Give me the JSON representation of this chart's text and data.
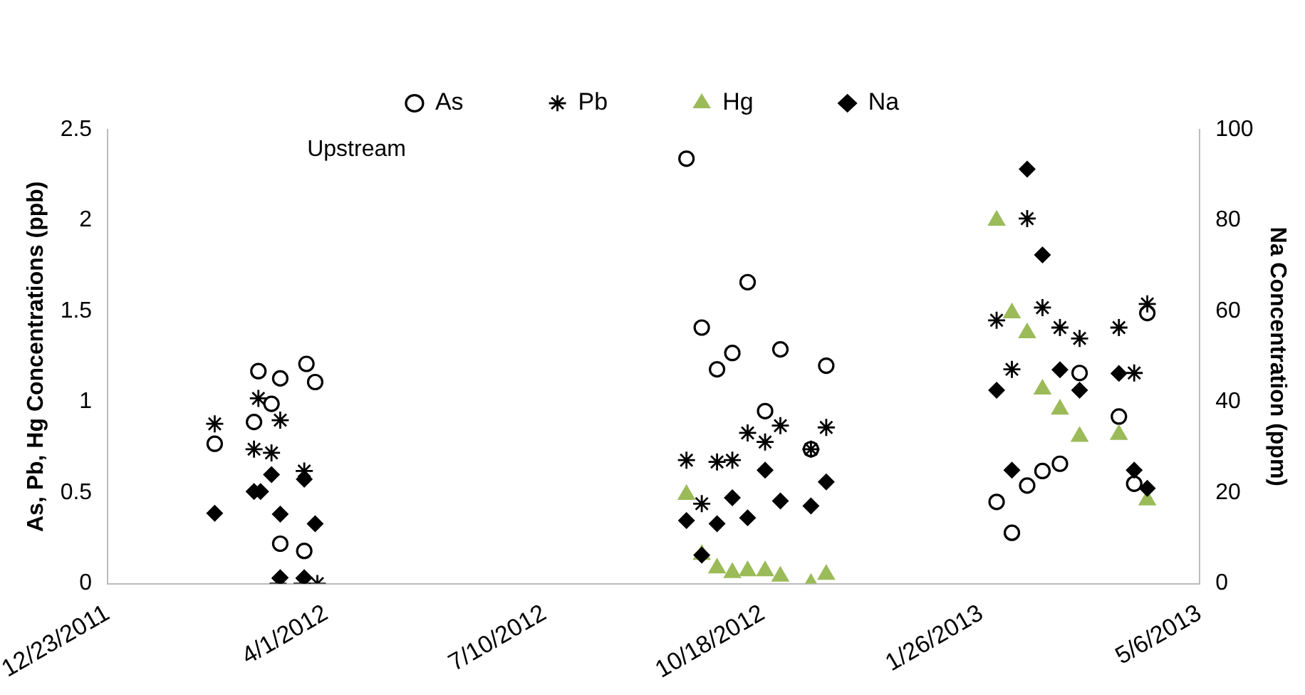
{
  "chart_data": {
    "type": "scatter",
    "ylabel": "As, Pb, Hg Concentrations (ppb)",
    "y2label": "Na Concentration (ppm)",
    "annotations": [
      "Upstream"
    ],
    "xlim": [
      "2011-12-23",
      "2013-05-06"
    ],
    "xticks": [
      {
        "value": "2011-12-23",
        "label": "12/23/2011"
      },
      {
        "value": "2012-04-01",
        "label": "4/1/2012"
      },
      {
        "value": "2012-07-10",
        "label": "7/10/2012"
      },
      {
        "value": "2012-10-18",
        "label": "10/18/2012"
      },
      {
        "value": "2013-01-26",
        "label": "1/26/2013"
      },
      {
        "value": "2013-05-06",
        "label": "5/6/2013"
      }
    ],
    "ylim": [
      0,
      2.5
    ],
    "yticks": [
      0,
      0.5,
      1,
      1.5,
      2,
      2.5
    ],
    "y2lim": [
      0,
      100
    ],
    "y2ticks": [
      0,
      20,
      40,
      60,
      80,
      100
    ],
    "grid": false,
    "legend": "top",
    "series": [
      {
        "name": "As",
        "color": "#000000",
        "marker": "circle",
        "x": [
          "2012-02-10",
          "2012-02-28",
          "2012-03-01",
          "2012-03-07",
          "2012-03-11",
          "2012-03-11",
          "2012-03-22",
          "2012-03-23",
          "2012-03-27",
          "2012-09-13",
          "2012-09-20",
          "2012-09-27",
          "2012-10-04",
          "2012-10-11",
          "2012-10-19",
          "2012-10-26",
          "2012-11-09",
          "2012-11-16",
          "2013-02-02",
          "2013-02-09",
          "2013-02-16",
          "2013-02-23",
          "2013-03-03",
          "2013-03-12",
          "2013-03-30",
          "2013-04-06",
          "2013-04-12"
        ],
        "values": [
          0.77,
          0.89,
          1.17,
          0.99,
          1.13,
          0.22,
          0.18,
          1.21,
          1.11,
          2.34,
          1.41,
          1.18,
          1.27,
          1.66,
          0.95,
          1.29,
          0.74,
          1.2,
          0.45,
          0.28,
          0.54,
          0.62,
          0.66,
          1.16,
          0.92,
          0.55,
          1.49
        ]
      },
      {
        "name": "Pb",
        "color": "#000000",
        "marker": "cross",
        "x": [
          "2012-02-10",
          "2012-02-28",
          "2012-03-01",
          "2012-03-07",
          "2012-03-10",
          "2012-03-11",
          "2012-03-21",
          "2012-03-22",
          "2012-03-28",
          "2012-09-13",
          "2012-09-20",
          "2012-09-27",
          "2012-10-04",
          "2012-10-11",
          "2012-10-19",
          "2012-10-26",
          "2012-11-09",
          "2012-11-16",
          "2013-02-02",
          "2013-02-09",
          "2013-02-16",
          "2013-02-23",
          "2013-03-03",
          "2013-03-12",
          "2013-03-30",
          "2013-04-06",
          "2013-04-12"
        ],
        "values": [
          0.88,
          0.74,
          1.02,
          0.72,
          0,
          0.9,
          0,
          0.62,
          0,
          0.68,
          0.44,
          0.67,
          0.68,
          0.83,
          0.78,
          0.87,
          0.74,
          0.86,
          1.45,
          1.18,
          2.01,
          1.52,
          1.41,
          1.35,
          1.41,
          1.16,
          1.54
        ]
      },
      {
        "name": "Hg",
        "color": "#9bbb59",
        "marker": "triangle",
        "x": [
          "2012-09-13",
          "2012-09-20",
          "2012-09-27",
          "2012-10-04",
          "2012-10-11",
          "2012-10-19",
          "2012-10-26",
          "2012-11-09",
          "2012-11-16",
          "2013-02-02",
          "2013-02-09",
          "2013-02-16",
          "2013-02-23",
          "2013-03-03",
          "2013-03-12",
          "2013-03-30",
          "2013-04-12"
        ],
        "values": [
          0.49,
          0.16,
          0.085,
          0.06,
          0.07,
          0.07,
          0.04,
          0,
          0.05,
          2,
          1.49,
          1.38,
          1.07,
          0.96,
          0.81,
          0.82,
          0.46
        ]
      },
      {
        "name": "Na",
        "color": "#000000",
        "marker": "diamond",
        "axis": "y2",
        "x": [
          "2012-02-10",
          "2012-02-28",
          "2012-03-02",
          "2012-03-07",
          "2012-03-11",
          "2012-03-11",
          "2012-03-22",
          "2012-03-22",
          "2012-03-27",
          "2012-09-13",
          "2012-09-20",
          "2012-09-27",
          "2012-10-04",
          "2012-10-11",
          "2012-10-19",
          "2012-10-26",
          "2012-11-09",
          "2012-11-16",
          "2013-02-02",
          "2013-02-09",
          "2013-02-16",
          "2013-02-23",
          "2013-03-03",
          "2013-03-12",
          "2013-03-30",
          "2013-04-06",
          "2013-04-12"
        ],
        "values": [
          15.5,
          20.3,
          20.3,
          24,
          15.3,
          1.3,
          23,
          1.3,
          13.2,
          13.9,
          6.3,
          13.2,
          18.9,
          14.5,
          25,
          18.2,
          17.1,
          22.4,
          42.6,
          25,
          91.3,
          72.4,
          47.1,
          42.6,
          46.3,
          25,
          21
        ]
      }
    ]
  }
}
